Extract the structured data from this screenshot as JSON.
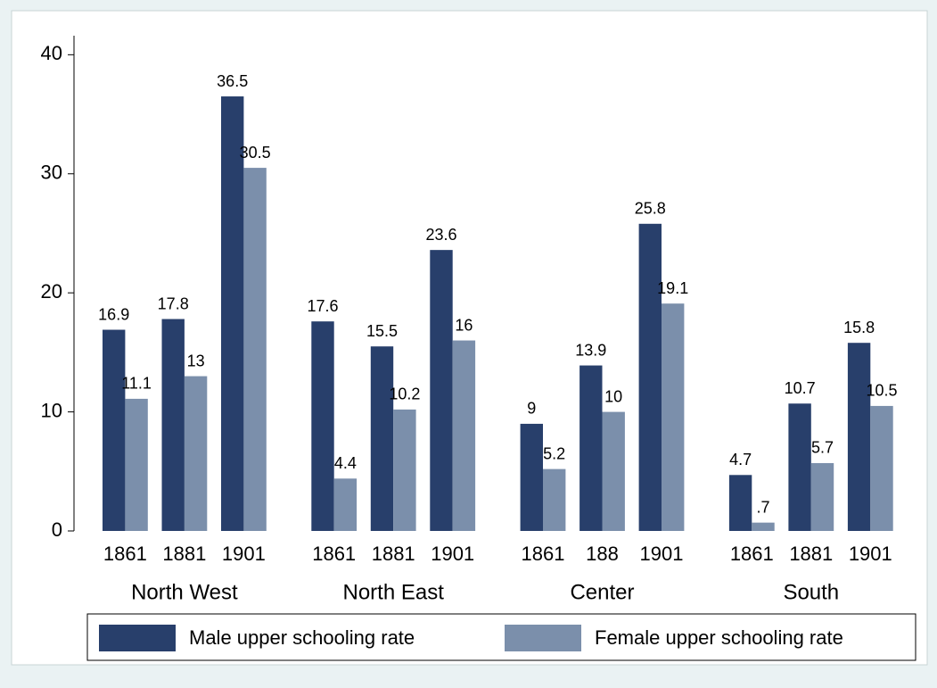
{
  "chart_data": {
    "type": "bar",
    "groups": [
      {
        "name": "North West",
        "categories": [
          "1861",
          "1881",
          "1901"
        ]
      },
      {
        "name": "North East",
        "categories": [
          "1861",
          "1881",
          "1901"
        ]
      },
      {
        "name": "Center",
        "categories": [
          "1861",
          "188",
          "1901"
        ]
      },
      {
        "name": "South",
        "categories": [
          "1861",
          "1881",
          "1901"
        ]
      }
    ],
    "series": [
      {
        "name": "Male upper schooling rate",
        "color": "#283f6b",
        "values": [
          16.9,
          17.8,
          36.5,
          17.6,
          15.5,
          23.6,
          9,
          13.9,
          25.8,
          4.7,
          10.7,
          15.8
        ]
      },
      {
        "name": "Female upper schooling rate",
        "color": "#7b8fab",
        "values": [
          11.1,
          13,
          30.5,
          4.4,
          10.2,
          16,
          5.2,
          10,
          19.1,
          0.7,
          5.7,
          10.5
        ],
        "value_labels": [
          "11.1",
          "13",
          "30.5",
          "4.4",
          "10.2",
          "16",
          "5.2",
          "10",
          "19.1",
          ".7",
          "5.7",
          "10.5"
        ]
      }
    ],
    "ylim": [
      0,
      41.6
    ],
    "yticks": [
      0,
      10,
      20,
      30,
      40
    ],
    "grid": false,
    "legend": "bottom"
  }
}
